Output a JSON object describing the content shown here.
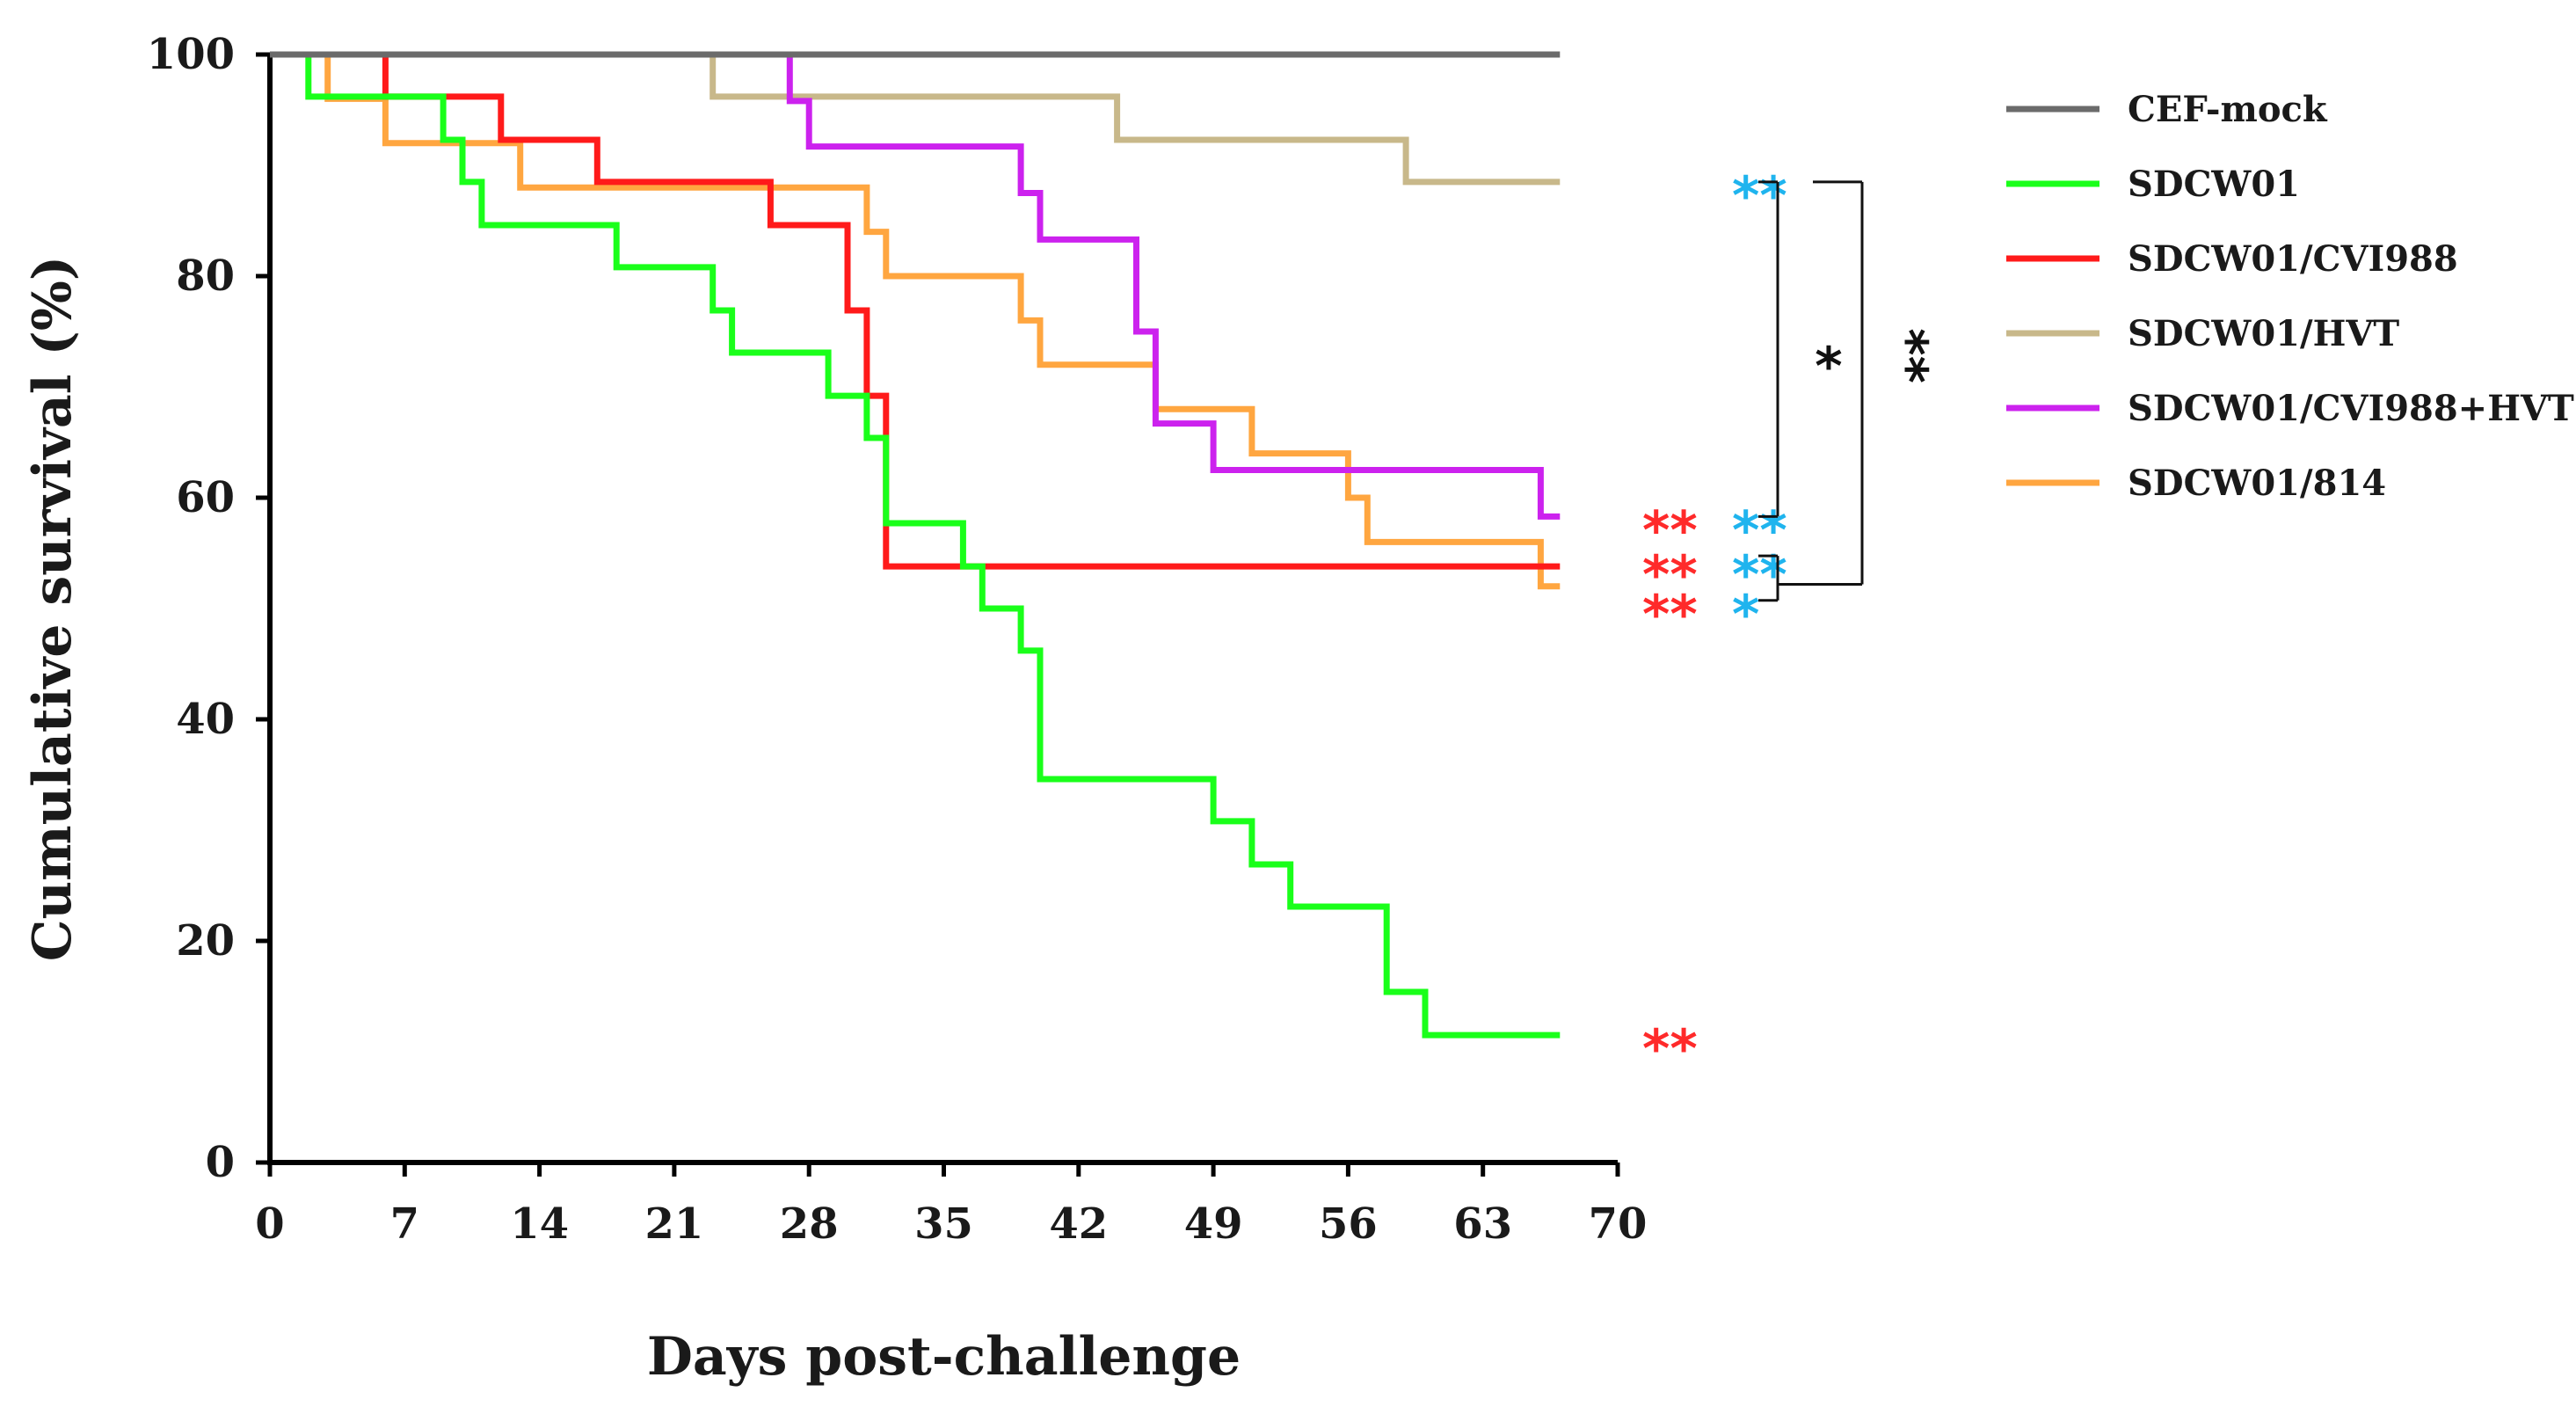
{
  "chart_data": {
    "type": "line",
    "step": true,
    "xlabel": "Days post-challenge",
    "ylabel": "Cumulative survival (%)",
    "xlim": [
      0,
      70
    ],
    "ylim": [
      0,
      100
    ],
    "xticks": [
      0,
      7,
      14,
      21,
      28,
      35,
      42,
      49,
      56,
      63,
      70
    ],
    "yticks": [
      0,
      20,
      40,
      60,
      80,
      100
    ],
    "grid": false,
    "legend_position": "right",
    "series": [
      {
        "name": "CEF-mock",
        "color": "#6b6b6b",
        "x": [
          0,
          67
        ],
        "y": [
          100,
          100
        ]
      },
      {
        "name": "SDCW01",
        "color": "#1aff1a",
        "x": [
          0,
          2,
          9,
          10,
          11,
          18,
          23,
          24,
          29,
          31,
          32,
          36,
          37,
          39,
          40,
          49,
          51,
          53,
          58,
          60,
          67
        ],
        "y": [
          100,
          96.2,
          92.3,
          88.5,
          84.6,
          80.8,
          76.9,
          73.1,
          69.2,
          65.4,
          57.7,
          53.8,
          50.0,
          46.2,
          34.6,
          30.8,
          26.9,
          23.1,
          15.4,
          11.5,
          11.5
        ]
      },
      {
        "name": "SDCW01/CVI988",
        "color": "#ff1a1a",
        "x": [
          0,
          6,
          12,
          17,
          26,
          30,
          31,
          32,
          67
        ],
        "y": [
          100,
          96.2,
          92.3,
          88.5,
          84.6,
          76.9,
          69.2,
          53.8,
          53.8
        ]
      },
      {
        "name": "SDCW01/HVT",
        "color": "#c8b88a",
        "x": [
          0,
          23,
          44,
          59,
          67
        ],
        "y": [
          100,
          96.2,
          92.3,
          88.5,
          88.5
        ]
      },
      {
        "name": "SDCW01/CVI988+HVT",
        "color": "#cc22ee",
        "x": [
          0,
          27,
          28,
          39,
          40,
          45,
          46,
          49,
          66,
          67
        ],
        "y": [
          100,
          95.8,
          91.7,
          87.5,
          83.3,
          75.0,
          66.7,
          62.5,
          58.3,
          58.3
        ]
      },
      {
        "name": "SDCW01/814",
        "color": "#ffa640",
        "x": [
          0,
          3,
          6,
          13,
          31,
          32,
          39,
          40,
          46,
          51,
          56,
          57,
          66,
          67
        ],
        "y": [
          100,
          96.0,
          92.0,
          88.0,
          84.0,
          80.0,
          76.0,
          72.0,
          68.0,
          64.0,
          60.0,
          56.0,
          52.0,
          52.0
        ]
      }
    ],
    "annotations": [
      {
        "series": "SDCW01/HVT",
        "y": 88.5,
        "red": "",
        "blue": "**"
      },
      {
        "series": "SDCW01/CVI988+HVT",
        "y": 58.3,
        "red": "**",
        "blue": "**"
      },
      {
        "series": "SDCW01/CVI988",
        "y": 53.8,
        "red": "**",
        "blue": "**"
      },
      {
        "series": "SDCW01/814",
        "y": 52.0,
        "red": "**",
        "blue": "*"
      },
      {
        "series": "SDCW01",
        "y": 11.5,
        "red": "**",
        "blue": ""
      }
    ],
    "brackets": [
      {
        "from": "SDCW01/HVT",
        "to": "SDCW01/CVI988+HVT",
        "label": "*"
      },
      {
        "from": "SDCW01/HVT",
        "to": "SDCW01/CVI988 + SDCW01/814",
        "label": "**"
      }
    ],
    "annotation_colors": {
      "red": "#ff2a2a",
      "blue": "#1fb4ee",
      "bracket": "#111111"
    }
  }
}
